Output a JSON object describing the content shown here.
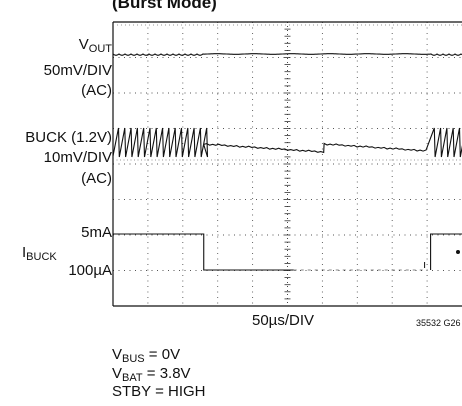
{
  "chart_data": {
    "type": "line",
    "title": "(Burst Mode)",
    "xlabel": "50µs/DIV",
    "x_divisions": 10,
    "y_divisions": 8,
    "grid": true,
    "figure_id": "35532 G26",
    "channels": [
      {
        "name_main": "V",
        "name_sub": "OUT",
        "scale": "50mV/DIV",
        "coupling": "(AC)"
      },
      {
        "name_main": "BUCK (1.2V)",
        "scale": "10mV/DIV",
        "coupling": "(AC)"
      },
      {
        "name_main": "I",
        "name_sub": "BUCK",
        "level_high": "5mA",
        "level_low": "100µA"
      }
    ],
    "series": [
      {
        "name": "VOUT",
        "x": [
          0,
          10
        ],
        "y": [
          0,
          0
        ]
      },
      {
        "name": "BUCK (1.2V)",
        "x": [
          0,
          2.6,
          2.6,
          6.05,
          6.05,
          10
        ],
        "y": [
          2,
          2,
          0.3,
          -0.2,
          0.3,
          -0.2
        ]
      },
      {
        "name": "IBUCK",
        "x": [
          0,
          2.6,
          2.6,
          9.1,
          9.1,
          10
        ],
        "y": [
          5,
          5,
          0.1,
          0.1,
          5,
          5
        ]
      }
    ]
  },
  "conditions": [
    {
      "main": "V",
      "sub": "BUS",
      "rest": " = 0V"
    },
    {
      "main": "V",
      "sub": "BAT",
      "rest": " = 3.8V"
    },
    {
      "main": "STBY = HIGH",
      "sub": "",
      "rest": ""
    }
  ]
}
